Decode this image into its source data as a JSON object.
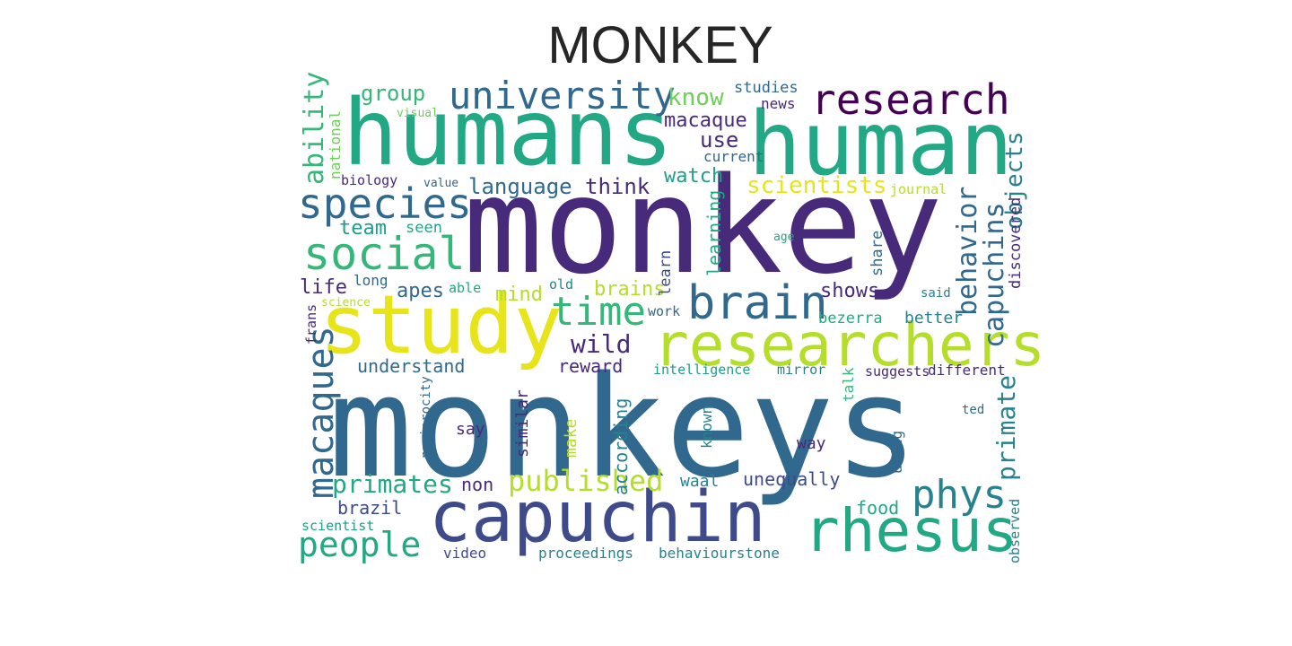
{
  "title": "MONKEY",
  "colors": {
    "c1": "#440154",
    "c2": "#472a7a",
    "c3": "#3e4a89",
    "c4": "#31688e",
    "c5": "#26828e",
    "c6": "#1f9e89",
    "c7": "#22a884",
    "c8": "#35b779",
    "c9": "#6ece58",
    "c10": "#b5de2b",
    "c11": "#e7e419"
  },
  "words": [
    {
      "text": "monkeys",
      "color": "c4"
    },
    {
      "text": "monkey",
      "color": "c2"
    },
    {
      "text": "humans",
      "color": "c7"
    },
    {
      "text": "human",
      "color": "c7"
    },
    {
      "text": "study",
      "color": "c11"
    },
    {
      "text": "capuchin",
      "color": "c3"
    },
    {
      "text": "researchers",
      "color": "c10"
    },
    {
      "text": "rhesus",
      "color": "c7"
    },
    {
      "text": "research",
      "color": "c1"
    },
    {
      "text": "university",
      "color": "c4"
    },
    {
      "text": "species",
      "color": "c4"
    },
    {
      "text": "social",
      "color": "c8"
    },
    {
      "text": "brain",
      "color": "c4"
    },
    {
      "text": "time",
      "color": "c8"
    },
    {
      "text": "phys",
      "color": "c5"
    },
    {
      "text": "people",
      "color": "c7"
    },
    {
      "text": "macaques",
      "color": "c4"
    },
    {
      "text": "capuchins",
      "color": "c4"
    },
    {
      "text": "behavior",
      "color": "c4"
    },
    {
      "text": "primate",
      "color": "c5"
    },
    {
      "text": "published",
      "color": "c10"
    },
    {
      "text": "primates",
      "color": "c7"
    },
    {
      "text": "objects",
      "color": "c5"
    },
    {
      "text": "ability",
      "color": "c8"
    },
    {
      "text": "scientists",
      "color": "c11"
    },
    {
      "text": "language",
      "color": "c4"
    },
    {
      "text": "think",
      "color": "c2"
    },
    {
      "text": "wild",
      "color": "c2"
    },
    {
      "text": "know",
      "color": "c9"
    },
    {
      "text": "group",
      "color": "c8"
    },
    {
      "text": "macaque",
      "color": "c2"
    },
    {
      "text": "use",
      "color": "c2"
    },
    {
      "text": "watch",
      "color": "c6"
    },
    {
      "text": "studies",
      "color": "c4"
    },
    {
      "text": "news",
      "color": "c2"
    },
    {
      "text": "current",
      "color": "c4"
    },
    {
      "text": "team",
      "color": "c6"
    },
    {
      "text": "seen",
      "color": "c7"
    },
    {
      "text": "life",
      "color": "c2"
    },
    {
      "text": "long",
      "color": "c4"
    },
    {
      "text": "apes",
      "color": "c4"
    },
    {
      "text": "able",
      "color": "c7"
    },
    {
      "text": "mind",
      "color": "c10"
    },
    {
      "text": "old",
      "color": "c5"
    },
    {
      "text": "brains",
      "color": "c10"
    },
    {
      "text": "shows",
      "color": "c2"
    },
    {
      "text": "said",
      "color": "c5"
    },
    {
      "text": "better",
      "color": "c5"
    },
    {
      "text": "bezerra",
      "color": "c7"
    },
    {
      "text": "work",
      "color": "c4"
    },
    {
      "text": "understand",
      "color": "c4"
    },
    {
      "text": "reward",
      "color": "c2"
    },
    {
      "text": "intelligence",
      "color": "c6"
    },
    {
      "text": "mirror",
      "color": "c5"
    },
    {
      "text": "suggests",
      "color": "c2"
    },
    {
      "text": "different",
      "color": "c2"
    },
    {
      "text": "say",
      "color": "c2"
    },
    {
      "text": "ted",
      "color": "c4"
    },
    {
      "text": "way",
      "color": "c2"
    },
    {
      "text": "unequally",
      "color": "c3"
    },
    {
      "text": "non",
      "color": "c2"
    },
    {
      "text": "brazil",
      "color": "c3"
    },
    {
      "text": "waal",
      "color": "c5"
    },
    {
      "text": "food",
      "color": "c7"
    },
    {
      "text": "scientist",
      "color": "c6"
    },
    {
      "text": "video",
      "color": "c3"
    },
    {
      "text": "proceedings",
      "color": "c5"
    },
    {
      "text": "behaviourstone",
      "color": "c5"
    },
    {
      "text": "visual",
      "color": "c9"
    },
    {
      "text": "biology",
      "color": "c2"
    },
    {
      "text": "value",
      "color": "c4"
    },
    {
      "text": "journal",
      "color": "c10"
    },
    {
      "text": "age",
      "color": "c7"
    },
    {
      "text": "science",
      "color": "c10"
    },
    {
      "text": "national",
      "color": "c9"
    },
    {
      "text": "frans",
      "color": "c2"
    },
    {
      "text": "learning",
      "color": "c7"
    },
    {
      "text": "learn",
      "color": "c3"
    },
    {
      "text": "discovered",
      "color": "c2"
    },
    {
      "text": "share",
      "color": "c4"
    },
    {
      "text": "according",
      "color": "c5"
    },
    {
      "text": "make",
      "color": "c10"
    },
    {
      "text": "similar",
      "color": "c2"
    },
    {
      "text": "reciprocity",
      "color": "c4"
    },
    {
      "text": "known",
      "color": "c5"
    },
    {
      "text": "talk",
      "color": "c8"
    },
    {
      "text": "using",
      "color": "c4"
    },
    {
      "text": "observed",
      "color": "c5"
    }
  ]
}
